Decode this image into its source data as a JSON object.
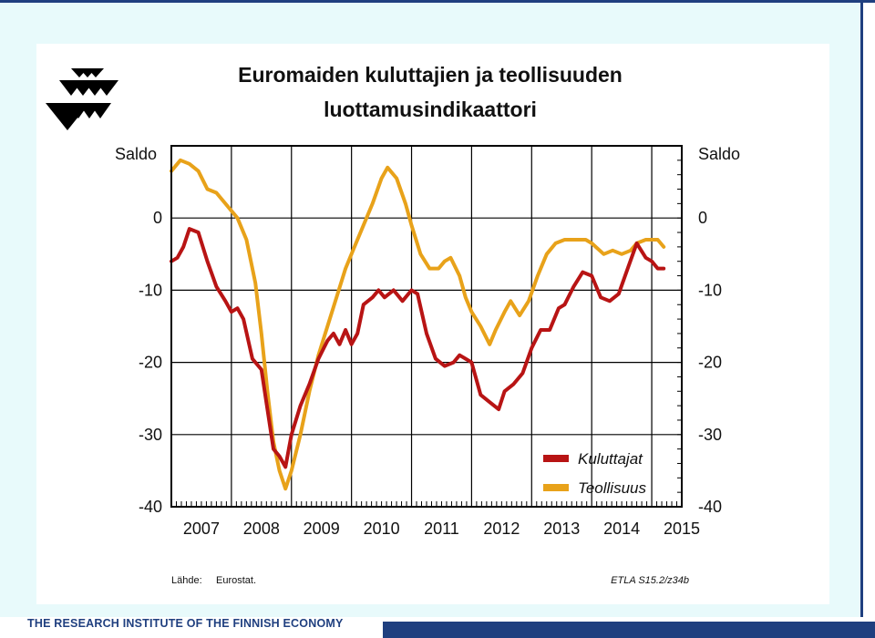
{
  "footer": {
    "institute": "THE RESEARCH INSTITUTE OF THE FINNISH ECONOMY"
  },
  "colors": {
    "slide_background": "#e8fafb",
    "brand_blue": "#1f3f7f",
    "kuluttajat": "#b81414",
    "teollisuus": "#e8a21a"
  },
  "chart_data": {
    "type": "line",
    "title_line1": "Euromaiden kuluttajien ja teollisuuden",
    "title_line2": "luottamusindikaattori",
    "ylabel_left": "Saldo",
    "ylabel_right": "Saldo",
    "ylim": [
      -40,
      10
    ],
    "xlim": [
      2007.0,
      2015.5
    ],
    "yticks": [
      0,
      -10,
      -20,
      -30,
      -40
    ],
    "ytick_labels": [
      "0",
      "-10",
      "-20",
      "-30",
      "-40"
    ],
    "xtick_labels": [
      "2007",
      "2008",
      "2009",
      "2010",
      "2011",
      "2012",
      "2013",
      "2014",
      "2015"
    ],
    "grid": true,
    "legend_position": "bottom-right",
    "source_label": "Lähde:",
    "source_value": "Eurostat.",
    "reference": "ETLA S15.2/z34b",
    "series": [
      {
        "name": "Kuluttajat",
        "color": "#b81414",
        "points": [
          [
            2007.0,
            -6
          ],
          [
            2007.1,
            -5.5
          ],
          [
            2007.2,
            -4
          ],
          [
            2007.3,
            -1.5
          ],
          [
            2007.45,
            -2
          ],
          [
            2007.6,
            -6
          ],
          [
            2007.75,
            -9.5
          ],
          [
            2007.9,
            -11.5
          ],
          [
            2008.0,
            -13
          ],
          [
            2008.1,
            -12.5
          ],
          [
            2008.2,
            -14
          ],
          [
            2008.35,
            -19.5
          ],
          [
            2008.5,
            -21
          ],
          [
            2008.6,
            -26.5
          ],
          [
            2008.7,
            -32
          ],
          [
            2008.8,
            -33
          ],
          [
            2008.9,
            -34.5
          ],
          [
            2009.0,
            -30
          ],
          [
            2009.15,
            -26
          ],
          [
            2009.3,
            -23
          ],
          [
            2009.45,
            -19.5
          ],
          [
            2009.6,
            -17
          ],
          [
            2009.7,
            -16
          ],
          [
            2009.8,
            -17.5
          ],
          [
            2009.9,
            -15.5
          ],
          [
            2010.0,
            -17.5
          ],
          [
            2010.1,
            -16
          ],
          [
            2010.2,
            -12
          ],
          [
            2010.35,
            -11
          ],
          [
            2010.45,
            -10
          ],
          [
            2010.55,
            -11
          ],
          [
            2010.7,
            -10
          ],
          [
            2010.85,
            -11.5
          ],
          [
            2011.0,
            -10
          ],
          [
            2011.1,
            -10.5
          ],
          [
            2011.25,
            -16
          ],
          [
            2011.4,
            -19.5
          ],
          [
            2011.55,
            -20.5
          ],
          [
            2011.7,
            -20
          ],
          [
            2011.8,
            -19
          ],
          [
            2011.9,
            -19.5
          ],
          [
            2012.0,
            -20
          ],
          [
            2012.15,
            -24.5
          ],
          [
            2012.3,
            -25.5
          ],
          [
            2012.45,
            -26.5
          ],
          [
            2012.55,
            -24
          ],
          [
            2012.7,
            -23
          ],
          [
            2012.85,
            -21.5
          ],
          [
            2013.0,
            -18
          ],
          [
            2013.15,
            -15.5
          ],
          [
            2013.3,
            -15.5
          ],
          [
            2013.45,
            -12.5
          ],
          [
            2013.55,
            -12
          ],
          [
            2013.7,
            -9.5
          ],
          [
            2013.85,
            -7.5
          ],
          [
            2014.0,
            -8
          ],
          [
            2014.15,
            -11
          ],
          [
            2014.3,
            -11.5
          ],
          [
            2014.45,
            -10.5
          ],
          [
            2014.6,
            -7
          ],
          [
            2014.75,
            -3.5
          ],
          [
            2014.9,
            -5.5
          ],
          [
            2015.0,
            -6
          ],
          [
            2015.1,
            -7
          ],
          [
            2015.2,
            -7
          ]
        ]
      },
      {
        "name": "Teollisuus",
        "color": "#e8a21a",
        "points": [
          [
            2007.0,
            6.5
          ],
          [
            2007.15,
            8
          ],
          [
            2007.3,
            7.5
          ],
          [
            2007.45,
            6.5
          ],
          [
            2007.6,
            4
          ],
          [
            2007.75,
            3.5
          ],
          [
            2007.9,
            2
          ],
          [
            2008.0,
            1
          ],
          [
            2008.1,
            0
          ],
          [
            2008.25,
            -3
          ],
          [
            2008.4,
            -9
          ],
          [
            2008.5,
            -16
          ],
          [
            2008.6,
            -24
          ],
          [
            2008.7,
            -31
          ],
          [
            2008.8,
            -35
          ],
          [
            2008.9,
            -37.5
          ],
          [
            2009.0,
            -35
          ],
          [
            2009.15,
            -30
          ],
          [
            2009.3,
            -24
          ],
          [
            2009.45,
            -19
          ],
          [
            2009.6,
            -15
          ],
          [
            2009.75,
            -11
          ],
          [
            2009.9,
            -7
          ],
          [
            2010.05,
            -4
          ],
          [
            2010.2,
            -1
          ],
          [
            2010.35,
            2
          ],
          [
            2010.5,
            5.5
          ],
          [
            2010.6,
            7
          ],
          [
            2010.75,
            5.5
          ],
          [
            2010.9,
            2
          ],
          [
            2011.0,
            -1
          ],
          [
            2011.15,
            -5
          ],
          [
            2011.3,
            -7
          ],
          [
            2011.45,
            -7
          ],
          [
            2011.55,
            -6
          ],
          [
            2011.65,
            -5.5
          ],
          [
            2011.8,
            -8
          ],
          [
            2011.9,
            -11
          ],
          [
            2012.0,
            -13
          ],
          [
            2012.15,
            -15
          ],
          [
            2012.3,
            -17.5
          ],
          [
            2012.4,
            -15.5
          ],
          [
            2012.55,
            -13
          ],
          [
            2012.65,
            -11.5
          ],
          [
            2012.8,
            -13.5
          ],
          [
            2012.95,
            -11.5
          ],
          [
            2013.1,
            -8
          ],
          [
            2013.25,
            -5
          ],
          [
            2013.4,
            -3.5
          ],
          [
            2013.55,
            -3
          ],
          [
            2013.75,
            -3
          ],
          [
            2013.9,
            -3
          ],
          [
            2014.0,
            -3.5
          ],
          [
            2014.2,
            -5
          ],
          [
            2014.35,
            -4.5
          ],
          [
            2014.5,
            -5
          ],
          [
            2014.65,
            -4.5
          ],
          [
            2014.75,
            -3.5
          ],
          [
            2014.9,
            -3
          ],
          [
            2015.1,
            -3
          ],
          [
            2015.2,
            -4
          ]
        ]
      }
    ]
  }
}
